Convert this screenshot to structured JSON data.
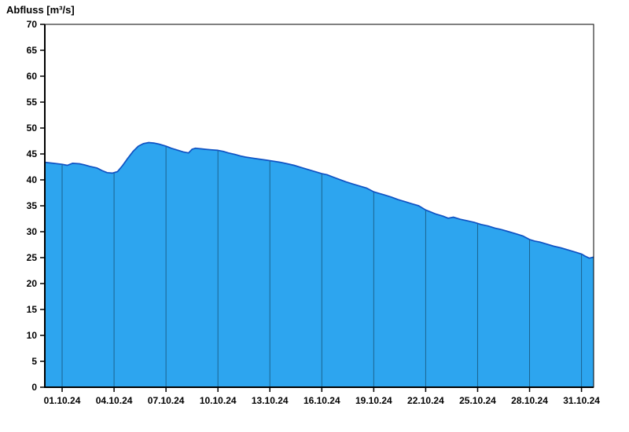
{
  "title": "Abfluss [m³/s]",
  "chart_data": {
    "type": "area",
    "title": "Abfluss [m³/s]",
    "xlabel": "",
    "ylabel": "Abfluss [m³/s]",
    "ylim": [
      0,
      70
    ],
    "y_tick_step": 5,
    "y_ticks": [
      0,
      5,
      10,
      15,
      20,
      25,
      30,
      35,
      40,
      45,
      50,
      55,
      60,
      65,
      70
    ],
    "x_domain_days": [
      0,
      31.7
    ],
    "x_ticks": [
      {
        "day": 1,
        "label": "01.10.24"
      },
      {
        "day": 4,
        "label": "04.10.24"
      },
      {
        "day": 7,
        "label": "07.10.24"
      },
      {
        "day": 10,
        "label": "10.10.24"
      },
      {
        "day": 13,
        "label": "13.10.24"
      },
      {
        "day": 16,
        "label": "16.10.24"
      },
      {
        "day": 19,
        "label": "19.10.24"
      },
      {
        "day": 22,
        "label": "22.10.24"
      },
      {
        "day": 25,
        "label": "25.10.24"
      },
      {
        "day": 28,
        "label": "28.10.24"
      },
      {
        "day": 31,
        "label": "31.10.24"
      }
    ],
    "legend": "off",
    "grid": "vertical-lines-inside-fill-only",
    "series": [
      {
        "name": "Abfluss",
        "x": [
          0,
          0.5,
          1.0,
          1.3,
          1.6,
          2.0,
          2.3,
          2.6,
          3.0,
          3.3,
          3.6,
          3.9,
          4.2,
          4.5,
          4.8,
          5.1,
          5.4,
          5.7,
          6.0,
          6.3,
          6.6,
          7.0,
          7.3,
          7.6,
          8.0,
          8.3,
          8.5,
          8.7,
          9.0,
          9.3,
          9.6,
          10.0,
          10.3,
          10.6,
          11.0,
          11.3,
          11.6,
          12.0,
          12.4,
          12.8,
          13.2,
          13.6,
          14.0,
          14.4,
          14.8,
          15.2,
          15.6,
          16.0,
          16.3,
          16.6,
          17.0,
          17.4,
          17.8,
          18.2,
          18.6,
          19.0,
          19.3,
          19.6,
          20.0,
          20.4,
          20.8,
          21.2,
          21.6,
          22.0,
          22.3,
          22.6,
          23.0,
          23.3,
          23.6,
          24.0,
          24.4,
          24.8,
          25.2,
          25.6,
          26.0,
          26.4,
          26.8,
          27.2,
          27.6,
          28.0,
          28.3,
          28.6,
          29.0,
          29.4,
          29.8,
          30.2,
          30.6,
          31.0,
          31.2,
          31.45,
          31.7
        ],
        "y": [
          43.4,
          43.2,
          43.0,
          42.8,
          43.2,
          43.1,
          42.9,
          42.6,
          42.3,
          41.8,
          41.4,
          41.3,
          41.6,
          42.8,
          44.2,
          45.5,
          46.5,
          47.0,
          47.2,
          47.1,
          46.9,
          46.5,
          46.1,
          45.8,
          45.4,
          45.2,
          45.9,
          46.1,
          46.0,
          45.9,
          45.8,
          45.7,
          45.5,
          45.2,
          44.9,
          44.6,
          44.4,
          44.2,
          44.0,
          43.8,
          43.6,
          43.4,
          43.1,
          42.8,
          42.4,
          42.0,
          41.6,
          41.2,
          41.0,
          40.6,
          40.1,
          39.6,
          39.2,
          38.8,
          38.4,
          37.7,
          37.4,
          37.1,
          36.7,
          36.2,
          35.8,
          35.4,
          35.0,
          34.2,
          33.8,
          33.4,
          33.0,
          32.6,
          32.8,
          32.4,
          32.1,
          31.8,
          31.4,
          31.1,
          30.7,
          30.4,
          30.0,
          29.6,
          29.2,
          28.5,
          28.2,
          28.0,
          27.6,
          27.2,
          26.9,
          26.5,
          26.1,
          25.7,
          25.3,
          24.9,
          25.1
        ]
      }
    ],
    "colors": {
      "fill": "#2da5ef",
      "line": "#0f52c3",
      "axis": "#000000",
      "grid_stroke": "#000000",
      "grid_opacity": 0.4,
      "background": "#ffffff"
    }
  }
}
